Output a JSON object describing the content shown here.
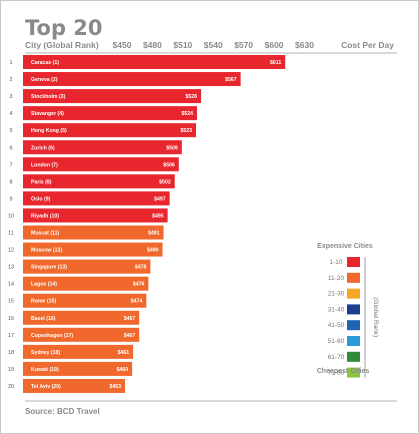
{
  "chart_data": {
    "type": "bar",
    "orientation": "horizontal",
    "title": "Top 20",
    "category_axis_label": "City (Global Rank)",
    "value_axis_label": "Cost Per Day",
    "value_tick_labels": [
      "$450",
      "$480",
      "$510",
      "$540",
      "$570",
      "$600",
      "$630"
    ],
    "value_ticks": [
      450,
      480,
      510,
      540,
      570,
      600,
      630
    ],
    "bars": [
      {
        "rank": "1",
        "label": "Caracas (1)",
        "value_label": "$611",
        "value": 611,
        "group": "1-10"
      },
      {
        "rank": "2",
        "label": "Geneva (2)",
        "value_label": "$567",
        "value": 567,
        "group": "1-10"
      },
      {
        "rank": "3",
        "label": "Stockholm (3)",
        "value_label": "$528",
        "value": 528,
        "group": "1-10"
      },
      {
        "rank": "4",
        "label": "Stavanger (4)",
        "value_label": "$524",
        "value": 524,
        "group": "1-10"
      },
      {
        "rank": "5",
        "label": "Hong Kong (5)",
        "value_label": "$523",
        "value": 523,
        "group": "1-10"
      },
      {
        "rank": "6",
        "label": "Zurich (6)",
        "value_label": "$509",
        "value": 509,
        "group": "1-10"
      },
      {
        "rank": "7",
        "label": "London (7)",
        "value_label": "$506",
        "value": 506,
        "group": "1-10"
      },
      {
        "rank": "8",
        "label": "Paris (8)",
        "value_label": "$502",
        "value": 502,
        "group": "1-10"
      },
      {
        "rank": "9",
        "label": "Oslo (9)",
        "value_label": "$497",
        "value": 497,
        "group": "1-10"
      },
      {
        "rank": "10",
        "label": "Riyadh (10)",
        "value_label": "$495",
        "value": 495,
        "group": "1-10"
      },
      {
        "rank": "11",
        "label": "Muscat (11)",
        "value_label": "$491",
        "value": 491,
        "group": "11-20"
      },
      {
        "rank": "12",
        "label": "Moscow (12)",
        "value_label": "$490",
        "value": 490,
        "group": "11-20"
      },
      {
        "rank": "13",
        "label": "Singapore (13)",
        "value_label": "$478",
        "value": 478,
        "group": "11-20"
      },
      {
        "rank": "14",
        "label": "Lagos (14)",
        "value_label": "$476",
        "value": 476,
        "group": "11-20"
      },
      {
        "rank": "15",
        "label": "Rome (15)",
        "value_label": "$474",
        "value": 474,
        "group": "11-20"
      },
      {
        "rank": "16",
        "label": "Basel (16)",
        "value_label": "$467",
        "value": 467,
        "group": "11-20"
      },
      {
        "rank": "17",
        "label": "Copenhagen (17)",
        "value_label": "$467",
        "value": 467,
        "group": "11-20"
      },
      {
        "rank": "18",
        "label": "Sydney (18)",
        "value_label": "$461",
        "value": 461,
        "group": "11-20"
      },
      {
        "rank": "19",
        "label": "Kuwait (19)",
        "value_label": "$460",
        "value": 460,
        "group": "11-20"
      },
      {
        "rank": "20",
        "label": "Tel Aviv (20)",
        "value_label": "$453",
        "value": 453,
        "group": "11-20"
      }
    ],
    "legend": {
      "top_label": "Expensive Cities",
      "bottom_label": "Cheapest Cities",
      "side_label": "(Global Rank)",
      "position": "right",
      "items": [
        {
          "label": "1-10",
          "color": "#e8262d"
        },
        {
          "label": "11-20",
          "color": "#f0682b"
        },
        {
          "label": "21-30",
          "color": "#f5a623"
        },
        {
          "label": "31-40",
          "color": "#1c3f8f"
        },
        {
          "label": "41-50",
          "color": "#1e64b4"
        },
        {
          "label": "51-60",
          "color": "#2a9ad8"
        },
        {
          "label": "61-70",
          "color": "#2e8b3a"
        },
        {
          "label": "71-80",
          "color": "#8cc63f"
        }
      ]
    },
    "source": "Source: BCD Travel",
    "grid": false
  }
}
